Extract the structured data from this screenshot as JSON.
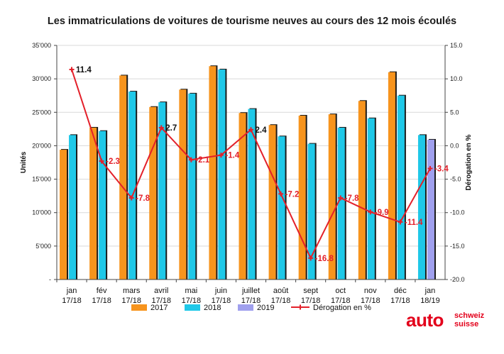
{
  "chart_data": {
    "type": "bar",
    "title": "Les immatriculations de voitures de tourisme neuves au cours des 12 mois écoulés",
    "ylabel": "Unités",
    "y2label": "Dérogation en %",
    "ylim": [
      0,
      35000
    ],
    "y2lim": [
      -20,
      15
    ],
    "y_ticks": [
      "-",
      "5'000",
      "10'000",
      "15'000",
      "20'000",
      "25'000",
      "30'000",
      "35'000"
    ],
    "y2_ticks": [
      "-20.0",
      "-15.0",
      "-10.0",
      "-5.0",
      "0.0",
      "5.0",
      "10.0",
      "15.0"
    ],
    "categories": [
      [
        "jan",
        "17/18"
      ],
      [
        "fév",
        "17/18"
      ],
      [
        "mars",
        "17/18"
      ],
      [
        "avril",
        "17/18"
      ],
      [
        "mai",
        "17/18"
      ],
      [
        "juin",
        "17/18"
      ],
      [
        "juillet",
        "17/18"
      ],
      [
        "août",
        "17/18"
      ],
      [
        "sept",
        "17/18"
      ],
      [
        "oct",
        "17/18"
      ],
      [
        "nov",
        "17/18"
      ],
      [
        "déc",
        "17/18"
      ],
      [
        "jan",
        "18/19"
      ]
    ],
    "series": [
      {
        "name": "2017",
        "color": "#f7941d",
        "values": [
          19400,
          22700,
          30500,
          25800,
          28400,
          31900,
          24900,
          23100,
          24500,
          24700,
          26700,
          31000,
          null
        ]
      },
      {
        "name": "2018",
        "color": "#1fc8e8",
        "values": [
          21600,
          22200,
          28100,
          26500,
          27800,
          31400,
          25500,
          21400,
          20300,
          22700,
          24100,
          27500,
          21600
        ]
      },
      {
        "name": "2019",
        "color": "#a0a0ee",
        "values": [
          null,
          null,
          null,
          null,
          null,
          null,
          null,
          null,
          null,
          null,
          null,
          null,
          20900
        ]
      }
    ],
    "line": {
      "name": "Dérogation en %",
      "color": "#e3202a",
      "values": [
        11.4,
        -2.3,
        -7.8,
        2.7,
        -2.1,
        -1.4,
        2.4,
        -7.2,
        -16.8,
        -7.8,
        -9.9,
        -11.4,
        -3.4
      ],
      "labels": [
        "11.4",
        "-2.3",
        "-7.8",
        "2.7",
        "-2.1",
        "-1.4",
        "2.4",
        "-7.2",
        "-16.8",
        "-7.8",
        "-9.9",
        "-11.4",
        "-3.4"
      ]
    },
    "grid": true,
    "legend_position": "bottom"
  },
  "logo": {
    "word": "auto",
    "line1": "schweiz",
    "line2": "suisse"
  }
}
